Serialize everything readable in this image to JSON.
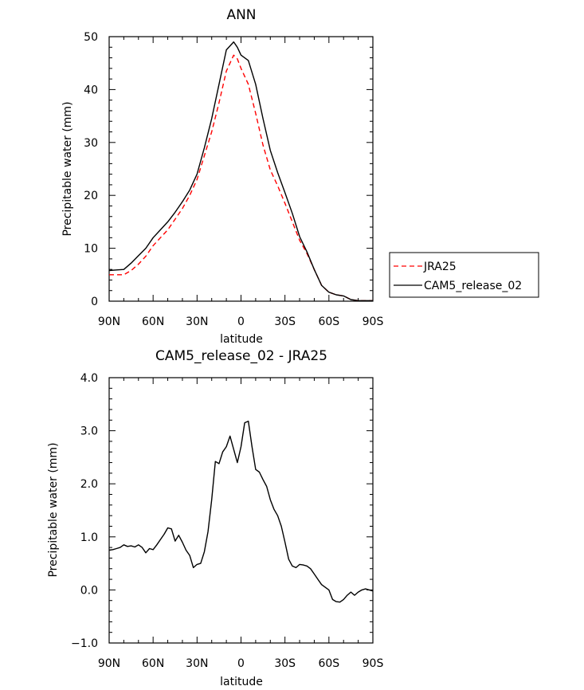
{
  "colors": {
    "jra25": "#ff0000",
    "cam5": "#000000"
  },
  "chart_data": [
    {
      "type": "line",
      "title": "ANN",
      "xlabel": "latitude",
      "ylabel": "Precipitable water (mm)",
      "xlim": [
        90,
        -90
      ],
      "ylim": [
        0,
        50
      ],
      "xticks": [
        90,
        60,
        30,
        0,
        -30,
        -60,
        -90
      ],
      "xtick_labels": [
        "90N",
        "60N",
        "30N",
        "0",
        "30S",
        "60S",
        "90S"
      ],
      "yticks": [
        0,
        10,
        20,
        30,
        40,
        50
      ],
      "ytick_labels": [
        "0",
        "10",
        "20",
        "30",
        "40",
        "50"
      ],
      "legend": {
        "position": "right",
        "entries": [
          "JRA25",
          "CAM5_release_02"
        ]
      },
      "series": [
        {
          "name": "JRA25",
          "style": "dashed",
          "color": "#ff0000",
          "x": [
            90,
            85,
            80,
            75,
            70,
            65,
            60,
            55,
            50,
            45,
            40,
            35,
            30,
            25,
            20,
            15,
            10,
            5,
            2.5,
            0,
            -2.5,
            -5,
            -10,
            -15,
            -20,
            -25,
            -30,
            -35,
            -40,
            -45,
            -50,
            -55,
            -60,
            -65,
            -70,
            -75,
            -80,
            -85,
            -90
          ],
          "values": [
            5.0,
            5.0,
            5.0,
            5.8,
            7.0,
            8.5,
            10.5,
            12.0,
            13.5,
            15.5,
            17.5,
            20.0,
            23.0,
            27.5,
            32.0,
            37.5,
            43.5,
            46.5,
            45.8,
            44.0,
            42.5,
            41.0,
            35.5,
            29.5,
            24.8,
            21.8,
            18.5,
            15.0,
            11.5,
            9.0,
            6.0,
            3.0,
            1.7,
            1.2,
            1.0,
            0.3,
            0.1,
            0.1,
            0.1
          ]
        },
        {
          "name": "CAM5_release_02",
          "style": "solid",
          "color": "#000000",
          "x": [
            90,
            85,
            80,
            75,
            70,
            65,
            60,
            55,
            50,
            45,
            40,
            35,
            30,
            25,
            20,
            15,
            10,
            5,
            2.5,
            0,
            -2.5,
            -5,
            -10,
            -15,
            -20,
            -25,
            -30,
            -35,
            -40,
            -45,
            -50,
            -55,
            -60,
            -65,
            -70,
            -75,
            -80,
            -85,
            -90
          ],
          "values": [
            5.8,
            5.9,
            6.0,
            7.2,
            8.6,
            10.0,
            12.0,
            13.5,
            15.0,
            16.8,
            18.8,
            21.0,
            24.0,
            29.0,
            34.5,
            41.0,
            47.5,
            49.0,
            48.0,
            46.5,
            46.0,
            45.5,
            41.0,
            34.5,
            28.5,
            24.3,
            20.5,
            16.6,
            12.2,
            9.3,
            6.0,
            3.0,
            1.7,
            1.2,
            1.0,
            0.3,
            0.1,
            0.1,
            0.1
          ]
        }
      ]
    },
    {
      "type": "line",
      "title": "CAM5_release_02 - JRA25",
      "xlabel": "latitude",
      "ylabel": "Precipitable water (mm)",
      "xlim": [
        90,
        -90
      ],
      "ylim": [
        -1.0,
        4.0
      ],
      "xticks": [
        90,
        60,
        30,
        0,
        -30,
        -60,
        -90
      ],
      "xtick_labels": [
        "90N",
        "60N",
        "30N",
        "0",
        "30S",
        "60S",
        "90S"
      ],
      "yticks": [
        -1.0,
        0.0,
        1.0,
        2.0,
        3.0,
        4.0
      ],
      "ytick_labels": [
        "-1.0",
        "0.0",
        "1.0",
        "2.0",
        "3.0",
        "4.0"
      ],
      "series": [
        {
          "name": "CAM5_release_02 - JRA25",
          "style": "solid",
          "color": "#000000",
          "x": [
            90,
            87.5,
            85,
            82.5,
            80,
            77.5,
            75,
            72.5,
            70,
            67.5,
            65,
            62.5,
            60,
            57.5,
            55,
            52.5,
            50,
            47.5,
            45,
            42.5,
            40,
            37.5,
            35,
            32.5,
            30,
            27.5,
            25,
            22.5,
            20,
            17.5,
            15,
            12.5,
            10,
            7.5,
            5,
            2.5,
            0,
            -2.5,
            -5,
            -7.5,
            -10,
            -12.5,
            -15,
            -17.5,
            -20,
            -22.5,
            -25,
            -27.5,
            -30,
            -32.5,
            -35,
            -37.5,
            -40,
            -42.5,
            -45,
            -47.5,
            -50,
            -52.5,
            -55,
            -57.5,
            -60,
            -62.5,
            -65,
            -67.5,
            -70,
            -72.5,
            -75,
            -77.5,
            -80,
            -82.5,
            -85,
            -87.5,
            -90
          ],
          "values": [
            0.75,
            0.76,
            0.78,
            0.8,
            0.85,
            0.82,
            0.83,
            0.81,
            0.85,
            0.8,
            0.7,
            0.78,
            0.76,
            0.85,
            0.95,
            1.05,
            1.17,
            1.15,
            0.92,
            1.03,
            0.9,
            0.75,
            0.65,
            0.42,
            0.48,
            0.5,
            0.72,
            1.1,
            1.7,
            2.42,
            2.38,
            2.6,
            2.7,
            2.9,
            2.65,
            2.4,
            2.7,
            3.15,
            3.18,
            2.7,
            2.27,
            2.22,
            2.08,
            1.95,
            1.7,
            1.52,
            1.4,
            1.2,
            0.9,
            0.58,
            0.45,
            0.42,
            0.48,
            0.47,
            0.45,
            0.4,
            0.3,
            0.2,
            0.1,
            0.05,
            0.0,
            -0.18,
            -0.22,
            -0.23,
            -0.18,
            -0.1,
            -0.04,
            -0.1,
            -0.04,
            0.0,
            0.02,
            0.0,
            -0.02
          ]
        }
      ]
    }
  ]
}
